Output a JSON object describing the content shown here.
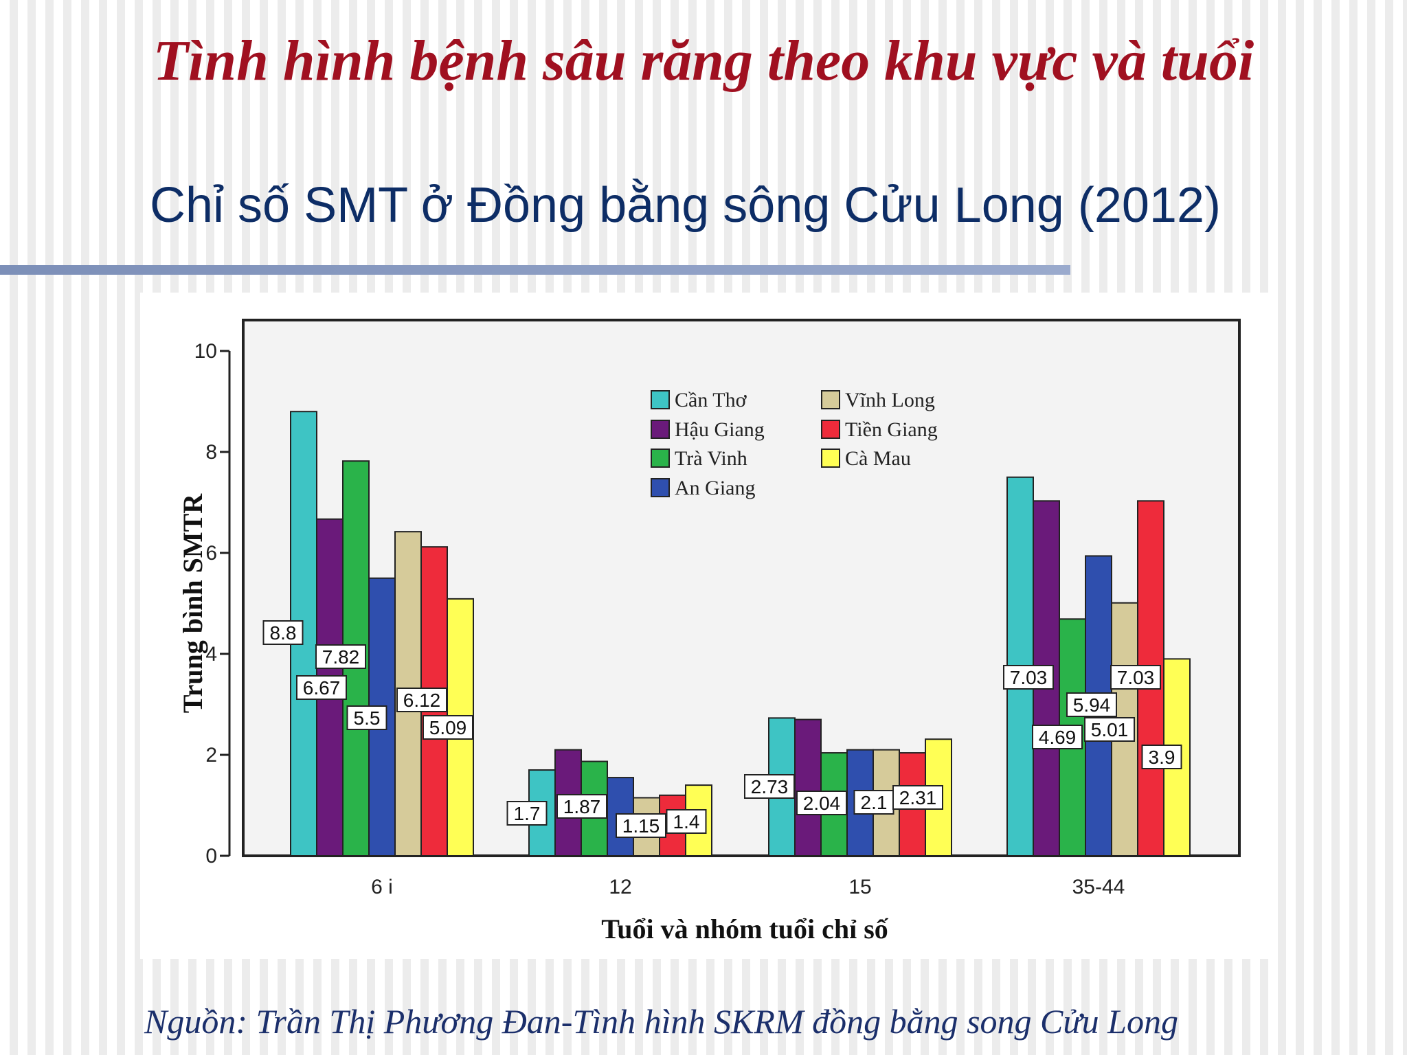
{
  "slide": {
    "title": "Tình hình bệnh sâu răng theo khu vực và tuổi",
    "subtitle": "Chỉ số SMT ở Đồng bằng sông Cửu Long (2012)",
    "source": "Nguồn: Trần Thị Phương Đan-Tình hình SKRM đồng bằng song Cửu Long"
  },
  "chart_data": {
    "type": "bar",
    "categories": [
      "6 i",
      "12",
      "15",
      "35-44"
    ],
    "xlabel": "Tuổi và nhóm tuổi chỉ số",
    "ylabel": "Trung bình SMTR",
    "ylim": [
      0,
      10
    ],
    "yticks": [
      0,
      2,
      4,
      6,
      8,
      10
    ],
    "grid": false,
    "legend_position": "top-center",
    "series": [
      {
        "name": "Cần Thơ",
        "color": "#3ec4c4",
        "values": [
          8.8,
          1.7,
          2.73,
          7.5
        ],
        "labels": [
          "8.8",
          "1.7",
          "2.73",
          ""
        ]
      },
      {
        "name": "Hậu Giang",
        "color": "#6a1a7a",
        "values": [
          6.67,
          2.1,
          2.7,
          7.03
        ],
        "labels": [
          "6.67",
          "",
          "",
          "7.03"
        ]
      },
      {
        "name": "Trà Vinh",
        "color": "#2ab34a",
        "values": [
          7.82,
          1.87,
          2.04,
          4.69
        ],
        "labels": [
          "7.82",
          "1.87",
          "2.04",
          "4.69"
        ]
      },
      {
        "name": "An Giang",
        "color": "#2f4fae",
        "values": [
          5.5,
          1.55,
          2.1,
          5.94
        ],
        "labels": [
          "5.5",
          "",
          "",
          "5.94"
        ]
      },
      {
        "name": "Vĩnh Long",
        "color": "#d6cb9a",
        "values": [
          6.42,
          1.15,
          2.1,
          5.01
        ],
        "labels": [
          "",
          "1.15",
          "2.1",
          "5.01"
        ]
      },
      {
        "name": "Tiền Giang",
        "color": "#ee2b3b",
        "values": [
          6.12,
          1.2,
          2.04,
          7.03
        ],
        "labels": [
          "6.12",
          "",
          "",
          "7.03"
        ]
      },
      {
        "name": "Cà Mau",
        "color": "#ffff55",
        "values": [
          5.09,
          1.4,
          2.31,
          3.9
        ],
        "labels": [
          "5.09",
          "1.4",
          "2.31",
          "3.9"
        ]
      }
    ]
  }
}
